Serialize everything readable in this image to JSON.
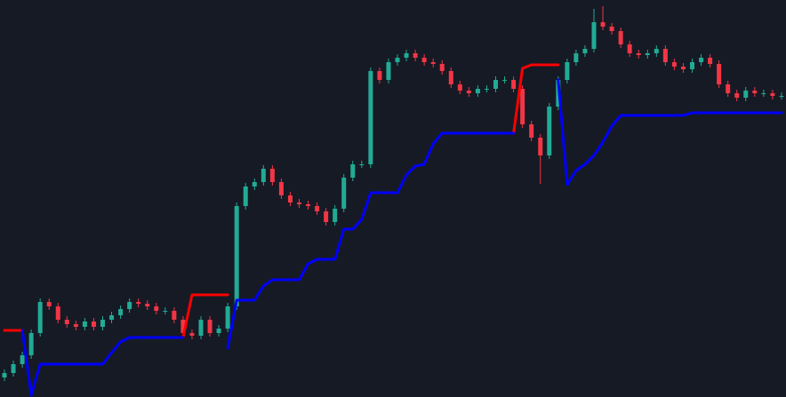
{
  "chart_data": {
    "type": "candlestick",
    "background": "#161a25",
    "up_color": "#22ab94",
    "down_color": "#f23645",
    "ylim": [
      0,
      447
    ],
    "open": [
      22,
      27,
      37,
      47,
      72,
      107,
      102,
      87,
      82,
      79,
      85,
      79,
      87,
      92,
      99,
      107,
      105,
      102,
      97,
      97,
      87,
      72,
      69,
      87,
      72,
      77,
      102,
      215,
      237,
      242,
      257,
      242,
      227,
      219,
      217,
      215,
      209,
      197,
      212,
      247,
      262,
      262,
      367,
      357,
      377,
      382,
      387,
      382,
      377,
      375,
      367,
      352,
      345,
      342,
      347,
      347,
      357,
      357,
      347,
      307,
      292,
      272,
      327,
      357,
      377,
      387,
      392,
      422,
      417,
      412,
      397,
      387,
      385,
      387,
      392,
      377,
      372,
      369,
      377,
      382,
      375,
      352,
      342,
      337,
      345,
      342,
      342,
      339
    ],
    "high": [
      31,
      41,
      51,
      76,
      111,
      111,
      106,
      91,
      86,
      89,
      89,
      91,
      96,
      103,
      111,
      111,
      109,
      106,
      101,
      101,
      91,
      76,
      91,
      91,
      81,
      106,
      219,
      241,
      246,
      261,
      261,
      246,
      231,
      223,
      221,
      219,
      213,
      216,
      251,
      266,
      266,
      371,
      371,
      381,
      386,
      391,
      391,
      386,
      381,
      379,
      371,
      356,
      349,
      351,
      351,
      361,
      361,
      361,
      351,
      311,
      296,
      331,
      361,
      381,
      391,
      396,
      437,
      440,
      421,
      416,
      401,
      391,
      391,
      396,
      396,
      381,
      376,
      381,
      386,
      386,
      379,
      356,
      346,
      349,
      349,
      346,
      346,
      343
    ],
    "low": [
      18,
      23,
      33,
      43,
      68,
      98,
      83,
      78,
      75,
      75,
      75,
      75,
      83,
      88,
      95,
      101,
      98,
      93,
      93,
      83,
      68,
      65,
      65,
      68,
      68,
      73,
      98,
      211,
      233,
      238,
      238,
      223,
      215,
      213,
      211,
      205,
      193,
      193,
      208,
      243,
      258,
      258,
      353,
      353,
      373,
      378,
      378,
      373,
      371,
      363,
      348,
      341,
      338,
      338,
      343,
      343,
      353,
      343,
      303,
      288,
      240,
      268,
      323,
      353,
      373,
      383,
      388,
      413,
      408,
      393,
      383,
      381,
      381,
      383,
      373,
      368,
      365,
      365,
      373,
      371,
      348,
      338,
      333,
      333,
      338,
      338,
      335,
      335
    ],
    "close": [
      27,
      37,
      47,
      72,
      107,
      102,
      87,
      82,
      79,
      85,
      79,
      87,
      92,
      99,
      107,
      105,
      102,
      97,
      97,
      87,
      72,
      69,
      87,
      72,
      77,
      102,
      215,
      237,
      242,
      257,
      242,
      227,
      219,
      217,
      215,
      209,
      197,
      212,
      247,
      262,
      262,
      367,
      357,
      377,
      382,
      387,
      382,
      377,
      375,
      367,
      352,
      345,
      342,
      347,
      347,
      357,
      357,
      347,
      307,
      292,
      272,
      327,
      357,
      377,
      387,
      392,
      422,
      417,
      412,
      397,
      387,
      385,
      387,
      392,
      377,
      372,
      369,
      377,
      382,
      375,
      352,
      342,
      337,
      345,
      342,
      342,
      339,
      339
    ],
    "lines": [
      {
        "color": "#ff0000",
        "values": [
          75,
          75,
          75,
          null,
          null,
          null,
          null,
          null,
          null,
          null,
          null,
          null,
          null,
          null,
          null,
          null,
          null,
          null,
          null,
          null,
          67,
          115,
          115,
          115,
          115,
          115,
          null,
          null,
          null,
          null,
          null,
          null,
          null,
          null,
          null,
          null,
          null,
          null,
          null,
          null,
          null,
          null,
          null,
          null,
          null,
          null,
          null,
          null,
          null,
          null,
          null,
          null,
          null,
          null,
          null,
          null,
          null,
          297,
          370,
          374,
          374,
          374,
          374,
          null,
          null,
          null,
          null,
          null,
          null,
          null,
          null,
          null,
          null,
          null,
          null,
          null,
          null,
          null,
          null,
          null,
          null,
          null,
          null,
          null,
          null,
          null,
          null,
          null
        ]
      },
      {
        "color": "#0000ff",
        "values": [
          null,
          null,
          75,
          2,
          37,
          37,
          37,
          37,
          37,
          37,
          37,
          37,
          50,
          62,
          67,
          67,
          67,
          67,
          67,
          67,
          67,
          null,
          null,
          null,
          null,
          55,
          109,
          109,
          109,
          125,
          132,
          132,
          132,
          132,
          150,
          155,
          155,
          155,
          189,
          189,
          200,
          230,
          230,
          230,
          230,
          250,
          260,
          262,
          285,
          297,
          297,
          297,
          297,
          297,
          297,
          297,
          297,
          297,
          null,
          null,
          null,
          null,
          357,
          239,
          255,
          262,
          272,
          287,
          305,
          317,
          317,
          317,
          317,
          317,
          317,
          317,
          317,
          320,
          320,
          320,
          320,
          320,
          320,
          320,
          320,
          320,
          320,
          320
        ]
      }
    ]
  }
}
